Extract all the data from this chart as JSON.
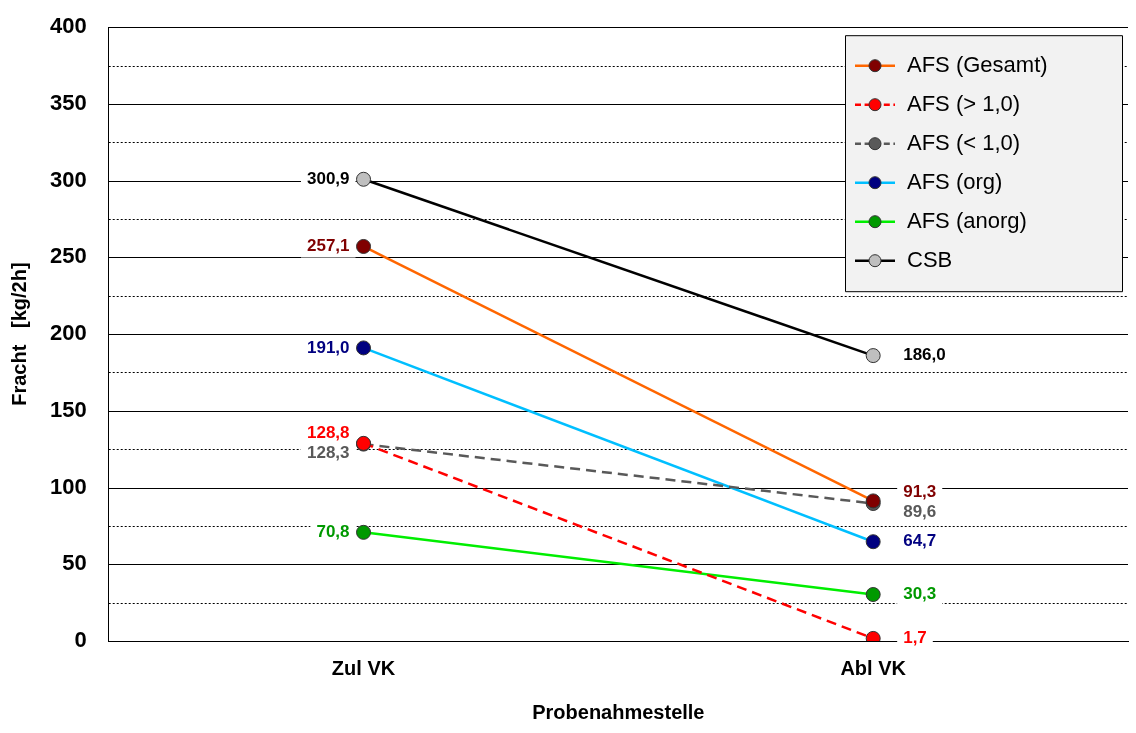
{
  "chart_data": {
    "type": "line",
    "xlabel": "Probenahmestelle",
    "ylabel": "Fracht   [kg/2h]",
    "categories": [
      "Zul VK",
      "Abl VK"
    ],
    "ylim": [
      0,
      400
    ],
    "yticks": [
      0,
      {
        "value": 25,
        "label": null
      },
      50,
      {
        "value": 75,
        "label": null
      },
      100,
      {
        "value": 125,
        "label": null
      },
      150,
      {
        "value": 175,
        "label": null
      },
      200,
      {
        "value": 225,
        "label": null
      },
      250,
      {
        "value": 275,
        "label": null
      },
      300,
      {
        "value": 325,
        "label": null
      },
      350,
      {
        "value": 375,
        "label": null
      },
      400
    ],
    "grid": "y",
    "legend": "top right",
    "marker": "circle",
    "series": [
      {
        "name": "AFS (Gesamt)",
        "color": "#ff6600",
        "colors": [
          "#800000",
          "#800000"
        ],
        "values": [
          257.1,
          91.3
        ],
        "value_labels": [
          "257,1",
          "91,3"
        ],
        "line_style": "solid"
      },
      {
        "name": "AFS (> 1,0)",
        "color": "#ff0000",
        "colors": [
          "#ff0000",
          "#ff0000"
        ],
        "values": [
          128.8,
          1.7
        ],
        "value_labels": [
          "128,8",
          "1,7"
        ],
        "line_style": "dashed"
      },
      {
        "name": "AFS (< 1,0)",
        "color": "#595959",
        "colors": [
          "#595959",
          "#595959"
        ],
        "values": [
          128.3,
          89.6
        ],
        "value_labels": [
          "128,3",
          "89,6"
        ],
        "line_style": "dashed"
      },
      {
        "name": "AFS (org)",
        "color": "#00bfff",
        "colors": [
          "#000080",
          "#000080"
        ],
        "values": [
          191.0,
          64.7
        ],
        "value_labels": [
          "191,0",
          "64,7"
        ],
        "line_style": "solid"
      },
      {
        "name": "AFS (anorg)",
        "color": "#00ee00",
        "colors": [
          "#009900",
          "#009900"
        ],
        "values": [
          70.8,
          30.3
        ],
        "value_labels": [
          "70,8",
          "30,3"
        ],
        "line_style": "solid"
      },
      {
        "name": "CSB",
        "color": "#000000",
        "colors": [
          "#bfbfbf",
          "#bfbfbf"
        ],
        "values": [
          300.9,
          186.0
        ],
        "value_labels": [
          "300,9",
          "186,0"
        ],
        "line_style": "solid"
      }
    ]
  }
}
